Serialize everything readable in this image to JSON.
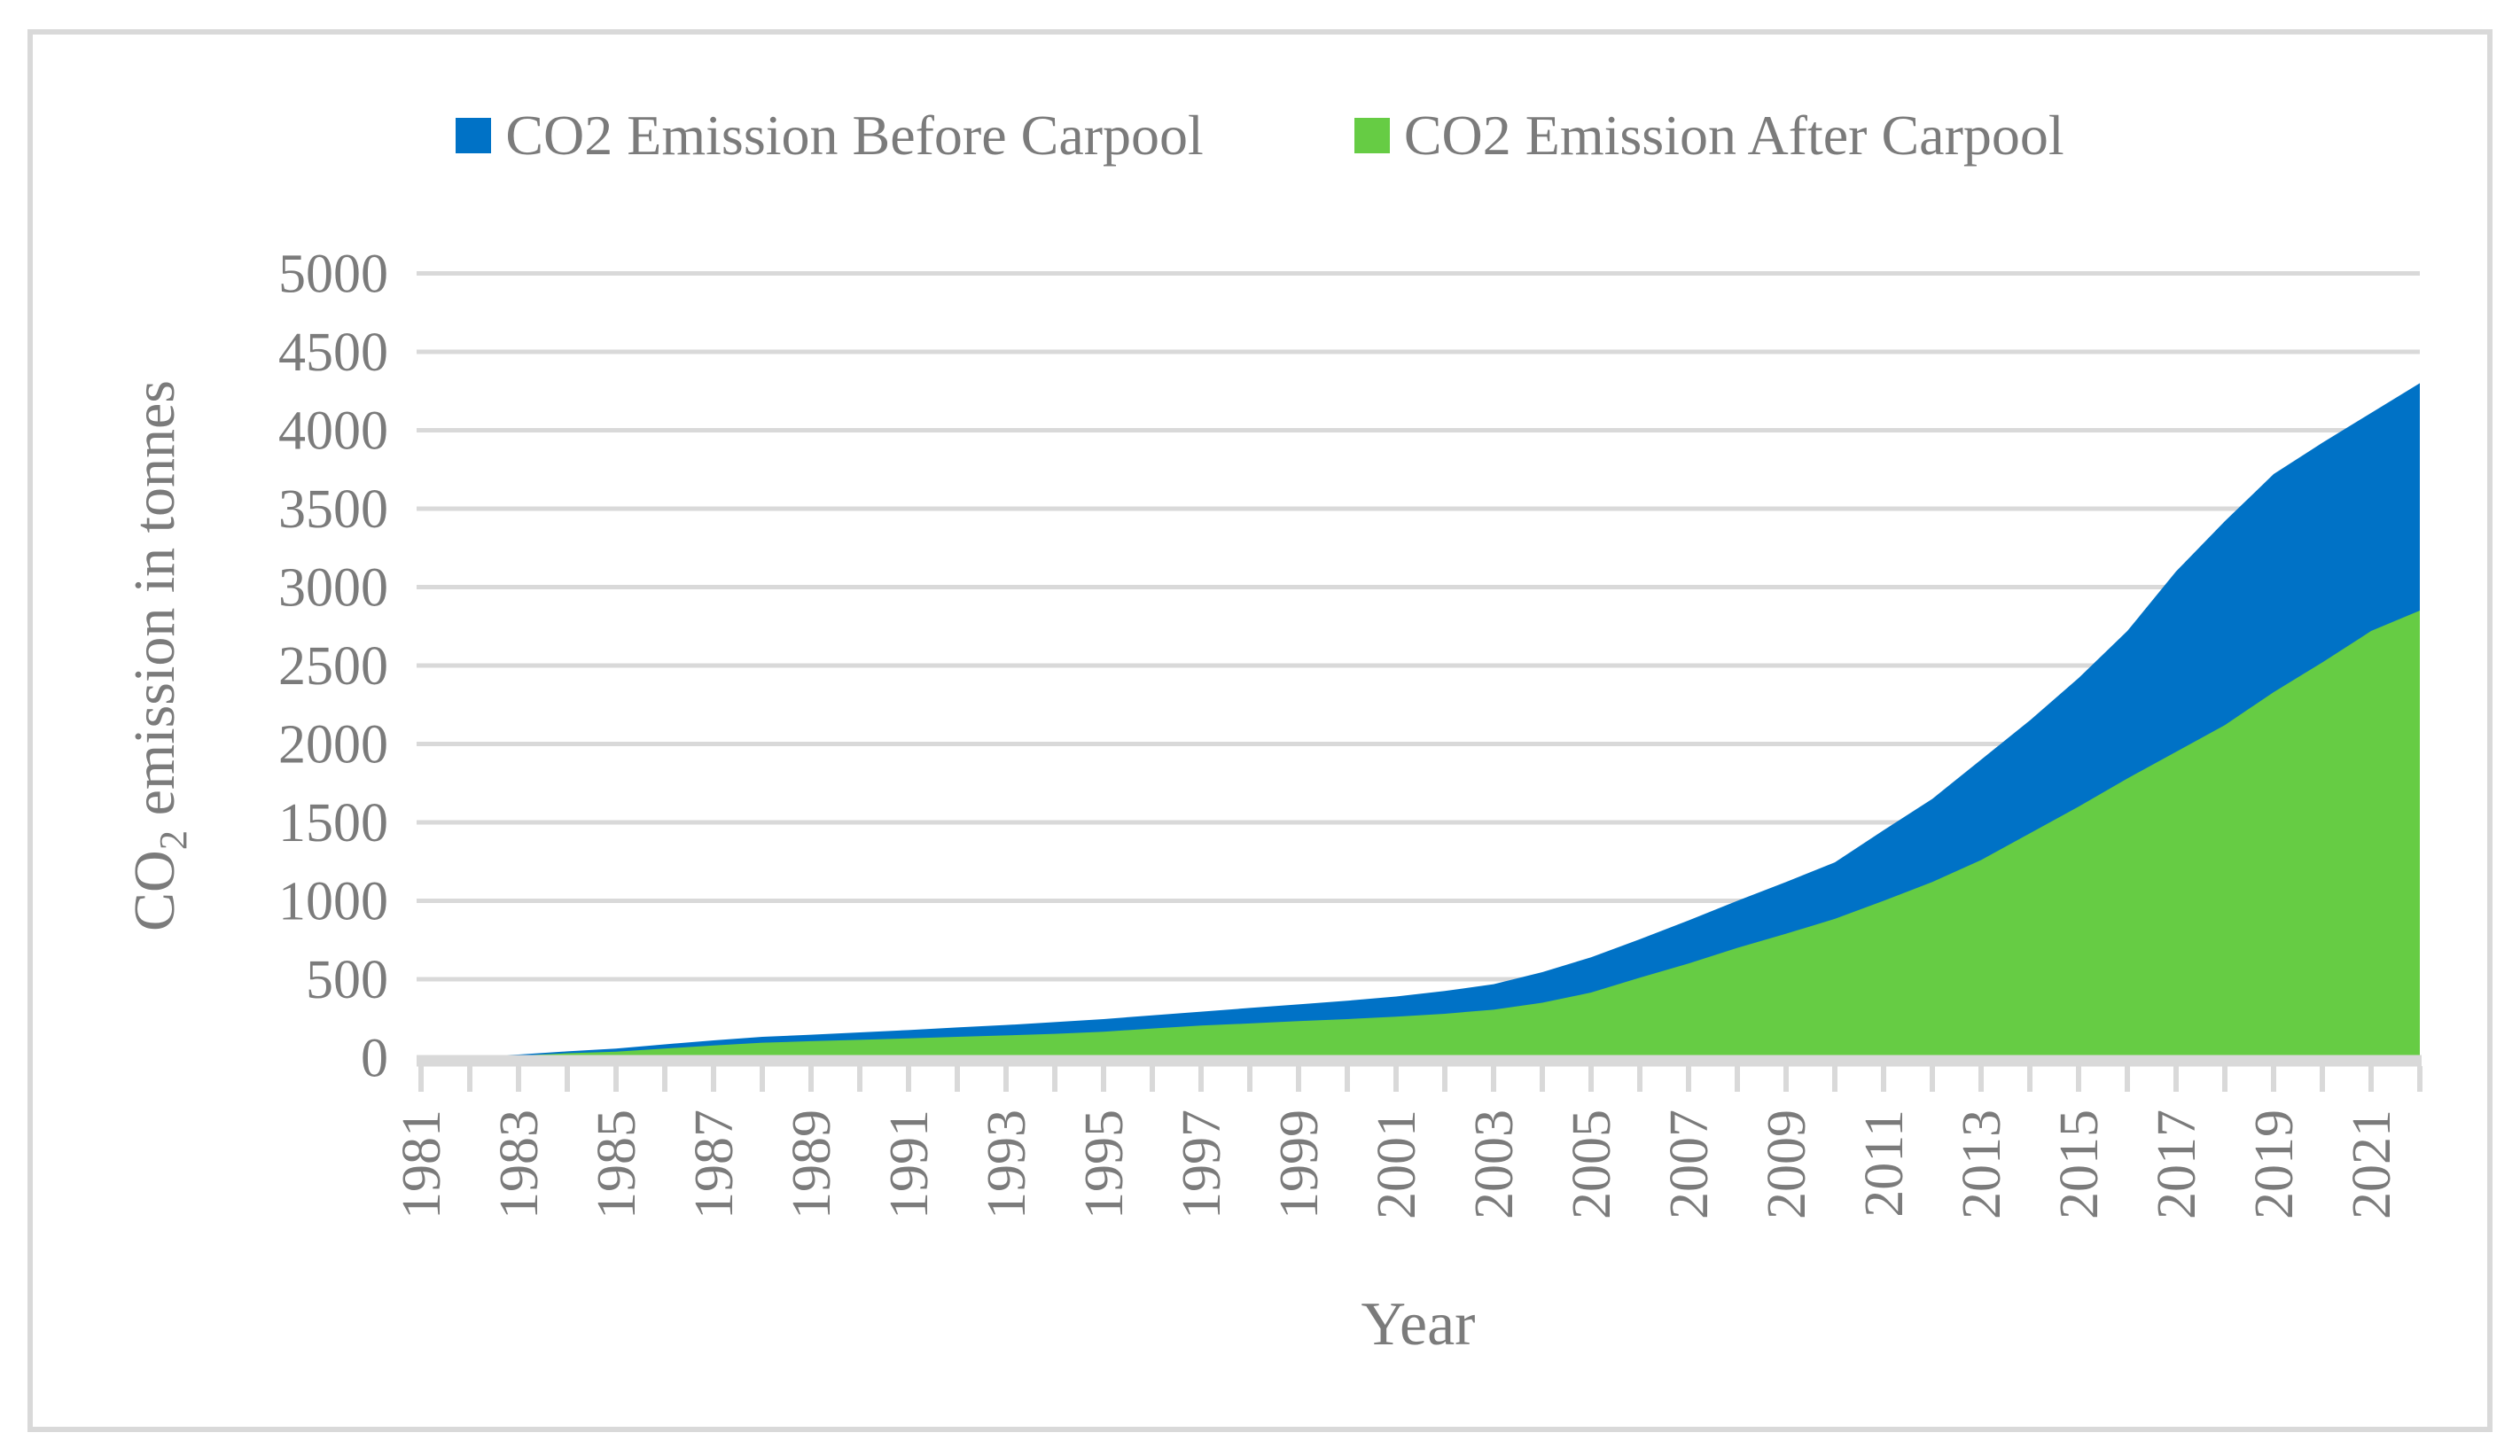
{
  "figure": {
    "background_color": "#FFFFFF",
    "border_color": "#D9D9D9",
    "text_color": "#7B7B7B",
    "gridline_color": "#D9D9D9"
  },
  "legend": {
    "items": [
      {
        "label": "CO2 Emission Before Carpool",
        "color": "#0072C6"
      },
      {
        "label": "CO2 Emission After Carpool",
        "color": "#66CC44"
      }
    ]
  },
  "y_axis": {
    "title_prefix": "CO",
    "title_subscript": "2",
    "title_suffix": " emission in tonnes",
    "tick_labels": [
      "0",
      "500",
      "1000",
      "1500",
      "2000",
      "2500",
      "3000",
      "3500",
      "4000",
      "4500",
      "5000"
    ]
  },
  "x_axis": {
    "title": "Year",
    "tick_labels": [
      "1981",
      "1983",
      "1985",
      "1987",
      "1989",
      "1991",
      "1993",
      "1995",
      "1997",
      "1999",
      "2001",
      "2003",
      "2005",
      "2007",
      "2009",
      "2011",
      "2013",
      "2015",
      "2017",
      "2019",
      "2021"
    ]
  },
  "chart_data": {
    "type": "area",
    "title": "",
    "xlabel": "Year",
    "ylabel": "CO2 emission in tonnes",
    "ylim": [
      0,
      5000
    ],
    "ytick_step": 500,
    "grid": true,
    "legend_position": "top",
    "x_label_interval": 2,
    "x": [
      1981,
      1982,
      1983,
      1984,
      1985,
      1986,
      1987,
      1988,
      1989,
      1990,
      1991,
      1992,
      1993,
      1994,
      1995,
      1996,
      1997,
      1998,
      1999,
      2000,
      2001,
      2002,
      2003,
      2004,
      2005,
      2006,
      2007,
      2008,
      2009,
      2010,
      2011,
      2012,
      2013,
      2014,
      2015,
      2016,
      2017,
      2018,
      2019,
      2020,
      2021,
      2022
    ],
    "series": [
      {
        "name": "CO2 Emission Before Carpool",
        "color": "#0072C6",
        "values": [
          0,
          8,
          20,
          40,
          58,
          85,
          110,
          133,
          146,
          161,
          176,
          193,
          208,
          227,
          246,
          270,
          293,
          317,
          340,
          363,
          390,
          425,
          468,
          545,
          640,
          755,
          875,
          1000,
          1120,
          1245,
          1450,
          1650,
          1900,
          2150,
          2420,
          2720,
          3100,
          3420,
          3720,
          3920,
          4110,
          4300
        ]
      },
      {
        "name": "CO2 Emission After Carpool",
        "color": "#66CC44",
        "values": [
          0,
          5,
          13,
          28,
          38,
          58,
          78,
          95,
          105,
          114,
          123,
          133,
          142,
          152,
          165,
          186,
          205,
          218,
          233,
          246,
          261,
          280,
          306,
          350,
          415,
          510,
          600,
          700,
          790,
          885,
          1000,
          1120,
          1260,
          1430,
          1600,
          1780,
          1950,
          2120,
          2330,
          2520,
          2720,
          2850
        ]
      }
    ]
  }
}
